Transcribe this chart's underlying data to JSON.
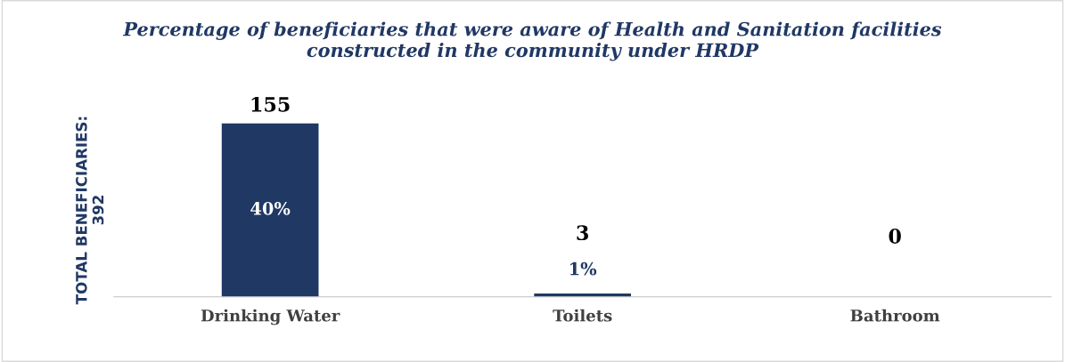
{
  "chart_data": {
    "type": "bar",
    "title": "Percentage of beneficiaries that were aware of Health and Sanitation facilities\nconstructed in the community under HRDP",
    "ylabel": "TOTAL BENEFICIARIES:\n392",
    "categories": [
      "Drinking Water",
      "Toilets",
      "Bathroom"
    ],
    "values": [
      155,
      3,
      0
    ],
    "color": "#203864",
    "data_labels": true,
    "annotations": [
      "40%",
      "1%"
    ],
    "tick_labels": "x",
    "grid": false
  }
}
